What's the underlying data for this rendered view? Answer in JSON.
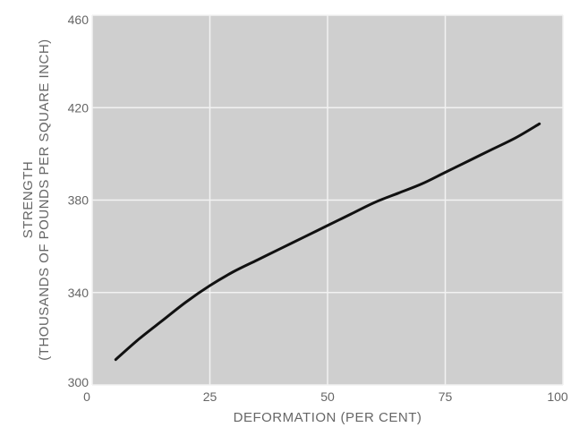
{
  "chart_data": {
    "type": "line",
    "title": "",
    "xlabel": "DEFORMATION (PER CENT)",
    "ylabel_line1": "STRENGTH",
    "ylabel_line2": "(THOUSANDS OF POUNDS PER SQUARE INCH)",
    "xlim": [
      0,
      100
    ],
    "ylim": [
      300,
      460
    ],
    "x_ticks": [
      "0",
      "25",
      "50",
      "75",
      "100"
    ],
    "y_ticks": [
      "300",
      "340",
      "380",
      "420",
      "460"
    ],
    "x_tick_values": [
      0,
      25,
      50,
      75,
      100
    ],
    "y_tick_values": [
      300,
      340,
      380,
      420,
      460
    ],
    "grid": true,
    "plot_background": "#cfcfcf",
    "grid_color": "#f2f2f2",
    "line_color": "#111111",
    "series": [
      {
        "x": [
          5,
          10,
          15,
          20,
          25,
          30,
          35,
          40,
          45,
          50,
          55,
          60,
          65,
          70,
          75,
          80,
          85,
          90,
          95
        ],
        "y": [
          311,
          320,
          328,
          336,
          343,
          349,
          354,
          359,
          364,
          369,
          374,
          379,
          383,
          387,
          392,
          397,
          402,
          407,
          413
        ]
      }
    ]
  }
}
